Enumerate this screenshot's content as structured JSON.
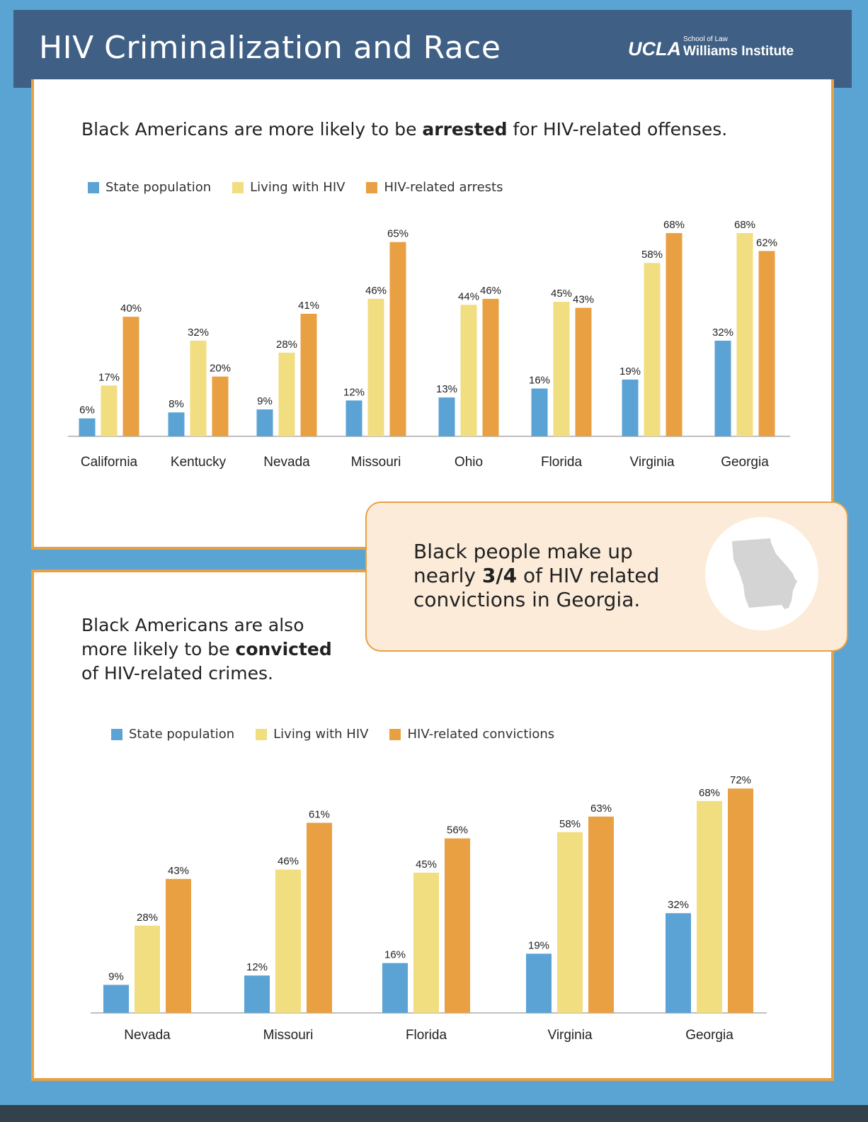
{
  "header": {
    "title": "HIV Criminalization and Race",
    "logo_main": "UCLA",
    "logo_school": "School of Law",
    "logo_institute": "Williams Institute"
  },
  "panel1": {
    "subtitle_pre": "Black Americans are more likely to be ",
    "subtitle_bold": "arrested",
    "subtitle_post": " for HIV-related offenses."
  },
  "panel2": {
    "line1": "Black Americans are also",
    "line2_pre": "more likely to be ",
    "line2_bold": "convicted",
    "line3": "of HIV-related crimes."
  },
  "callout": {
    "line1": "Black people make up",
    "line2_pre": "nearly ",
    "line2_bold": "3/4",
    "line2_post": " of HIV related",
    "line3": "convictions in Georgia.",
    "icon": "georgia-map-icon"
  },
  "colors": {
    "state_population": "#5ba3d4",
    "living_with_hiv": "#f0de80",
    "hiv_related": "#e9a043"
  },
  "chart_data": [
    {
      "type": "bar",
      "categories": [
        "California",
        "Kentucky",
        "Nevada",
        "Missouri",
        "Ohio",
        "Florida",
        "Virginia",
        "Georgia"
      ],
      "series": [
        {
          "name": "State population",
          "values": [
            6,
            8,
            9,
            12,
            13,
            16,
            19,
            32
          ]
        },
        {
          "name": "Living with HIV",
          "values": [
            17,
            32,
            28,
            46,
            44,
            45,
            58,
            68
          ]
        },
        {
          "name": "HIV-related arrests",
          "values": [
            40,
            20,
            41,
            65,
            46,
            43,
            68,
            62
          ]
        }
      ],
      "value_suffix": "%",
      "legend_position": "top-left",
      "grid": false
    },
    {
      "type": "bar",
      "categories": [
        "Nevada",
        "Missouri",
        "Florida",
        "Virginia",
        "Georgia"
      ],
      "series": [
        {
          "name": "State population",
          "values": [
            9,
            12,
            16,
            19,
            32
          ]
        },
        {
          "name": "Living with HIV",
          "values": [
            28,
            46,
            45,
            58,
            68
          ]
        },
        {
          "name": "HIV-related convictions",
          "values": [
            43,
            61,
            56,
            63,
            72
          ]
        }
      ],
      "value_suffix": "%",
      "legend_position": "top-left",
      "grid": false
    }
  ]
}
